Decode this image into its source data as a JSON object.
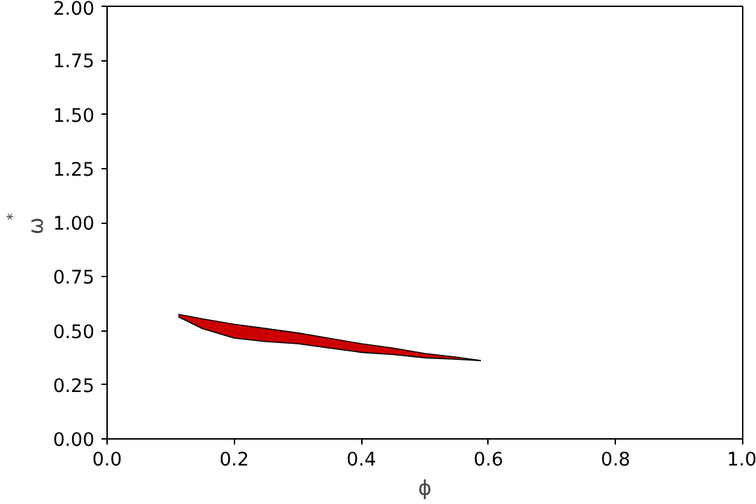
{
  "chart_data": {
    "type": "area",
    "xlabel": "ϕ",
    "ylabel": "ω$^{*}$",
    "xlim": [
      0,
      1
    ],
    "ylim": [
      0,
      2
    ],
    "xticks": [
      {
        "value": 0,
        "label": "0.0"
      },
      {
        "value": 0.2,
        "label": "0.2"
      },
      {
        "value": 0.4,
        "label": "0.4"
      },
      {
        "value": 0.6,
        "label": "0.6"
      },
      {
        "value": 0.8,
        "label": "0.8"
      },
      {
        "value": 1,
        "label": "1.0"
      }
    ],
    "yticks": [
      {
        "value": 0,
        "label": "0.00"
      },
      {
        "value": 0.25,
        "label": "0.25"
      },
      {
        "value": 0.5,
        "label": "0.50"
      },
      {
        "value": 0.75,
        "label": "0.75"
      },
      {
        "value": 1,
        "label": "1.00"
      },
      {
        "value": 1.25,
        "label": "1.25"
      },
      {
        "value": 1.5,
        "label": "1.50"
      },
      {
        "value": 1.75,
        "label": "1.75"
      },
      {
        "value": 2,
        "label": "2.00"
      }
    ],
    "grid": false,
    "series": [
      {
        "color": "#cc0000",
        "x": [
          0.112,
          0.15,
          0.2,
          0.25,
          0.3,
          0.35,
          0.4,
          0.45,
          0.5,
          0.55,
          0.588
        ],
        "values": [
          0.576,
          0.555,
          0.53,
          0.51,
          0.49,
          0.465,
          0.44,
          0.42,
          0.395,
          0.378,
          0.362
        ]
      },
      {
        "type": "line",
        "color": "#000000",
        "x": [
          0.112,
          0.15,
          0.2,
          0.25,
          0.3,
          0.35,
          0.4,
          0.45,
          0.5,
          0.55,
          0.588
        ],
        "values": [
          0.565,
          0.51,
          0.466,
          0.45,
          0.44,
          0.42,
          0.4,
          0.39,
          0.375,
          0.368,
          0.362
        ]
      }
    ]
  }
}
